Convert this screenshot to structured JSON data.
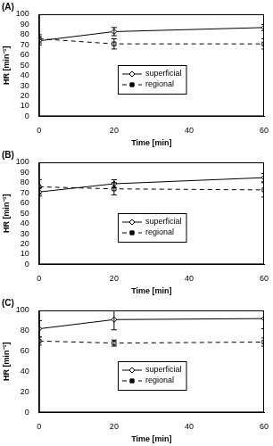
{
  "chart_data": [
    {
      "type": "line",
      "title": "(A)",
      "x_label": "Time [min]",
      "y_label": "HR [min⁻¹]",
      "x": [
        0,
        20,
        60
      ],
      "series": [
        {
          "name": "superficial",
          "color": "#000000",
          "values": [
            74,
            83,
            87
          ],
          "errors": [
            4,
            4,
            3
          ],
          "marker": "diamond",
          "line_style": "solid"
        },
        {
          "name": "regional",
          "color": "#000000",
          "values": [
            76,
            71,
            71
          ],
          "errors": [
            4,
            5,
            5
          ],
          "marker": "square",
          "line_style": "dashed"
        }
      ],
      "xlim": [
        0,
        60
      ],
      "xticks": [
        0,
        20,
        40,
        60
      ],
      "ylim": [
        0,
        100
      ],
      "yticks": [
        0,
        10,
        20,
        30,
        40,
        50,
        60,
        70,
        80,
        90,
        100
      ],
      "grid": false,
      "legend": "center"
    },
    {
      "type": "line",
      "title": "(B)",
      "x_label": "Time [min]",
      "y_label": "HR [min⁻¹]",
      "x": [
        0,
        20,
        60
      ],
      "series": [
        {
          "name": "superficial",
          "color": "#000000",
          "values": [
            71,
            79,
            85
          ],
          "errors": [
            4,
            4,
            4
          ],
          "marker": "diamond",
          "line_style": "solid"
        },
        {
          "name": "regional",
          "color": "#000000",
          "values": [
            76,
            74,
            73
          ],
          "errors": [
            7,
            6,
            7
          ],
          "marker": "square",
          "line_style": "dashed"
        }
      ],
      "xlim": [
        0,
        60
      ],
      "xticks": [
        0,
        20,
        40,
        60
      ],
      "ylim": [
        0,
        100
      ],
      "yticks": [
        0,
        10,
        20,
        30,
        40,
        50,
        60,
        70,
        80,
        90,
        100
      ],
      "grid": false,
      "legend": "center"
    },
    {
      "type": "line",
      "title": "(C)",
      "x_label": "Time [min]",
      "y_label": "HR [min⁻¹]",
      "x": [
        0,
        20,
        60
      ],
      "series": [
        {
          "name": "superficial",
          "color": "#000000",
          "values": [
            82,
            91,
            92
          ],
          "errors": [
            8,
            10,
            10
          ],
          "marker": "diamond",
          "line_style": "solid"
        },
        {
          "name": "regional",
          "color": "#000000",
          "values": [
            70,
            68,
            69
          ],
          "errors": [
            4,
            3,
            4
          ],
          "marker": "square",
          "line_style": "dashed"
        }
      ],
      "xlim": [
        0,
        60
      ],
      "xticks": [
        0,
        20,
        40,
        60
      ],
      "ylim": [
        0,
        100
      ],
      "yticks": [
        0,
        20,
        40,
        60,
        80,
        100
      ],
      "grid": false,
      "legend": "center"
    }
  ]
}
